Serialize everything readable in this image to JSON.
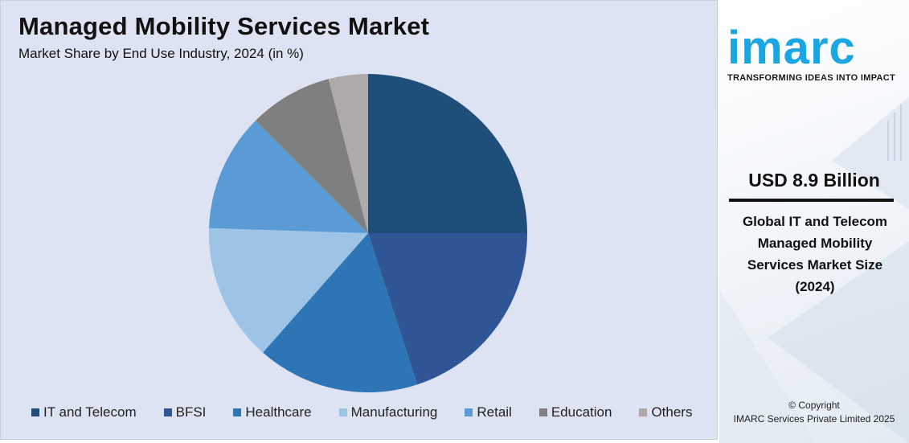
{
  "title": "Managed Mobility Services Market",
  "subtitle": "Market Share by End Use Industry, 2024 (in %)",
  "chart_data": {
    "type": "pie",
    "categories": [
      "IT and Telecom",
      "BFSI",
      "Healthcare",
      "Manufacturing",
      "Retail",
      "Education",
      "Others"
    ],
    "values": [
      25,
      20,
      16.5,
      14,
      12,
      8.5,
      4
    ],
    "colors": [
      "#1f4e79",
      "#2f5597",
      "#2e75b6",
      "#9dc3e6",
      "#5b9bd5",
      "#7f7f7f",
      "#aeaaaa"
    ],
    "start_angle_deg": 0,
    "direction": "clockwise",
    "legend_position": "bottom"
  },
  "sidebar": {
    "logo": "imarc",
    "tagline": "TRANSFORMING IDEAS INTO IMPACT",
    "stat_value": "USD 8.9 Billion",
    "stat_caption": [
      "Global IT and Telecom",
      "Managed Mobility",
      "Services Market Size",
      "(2024)"
    ],
    "copyright_line1": "© Copyright",
    "copyright_line2": "IMARC Services Private Limited 2025"
  }
}
